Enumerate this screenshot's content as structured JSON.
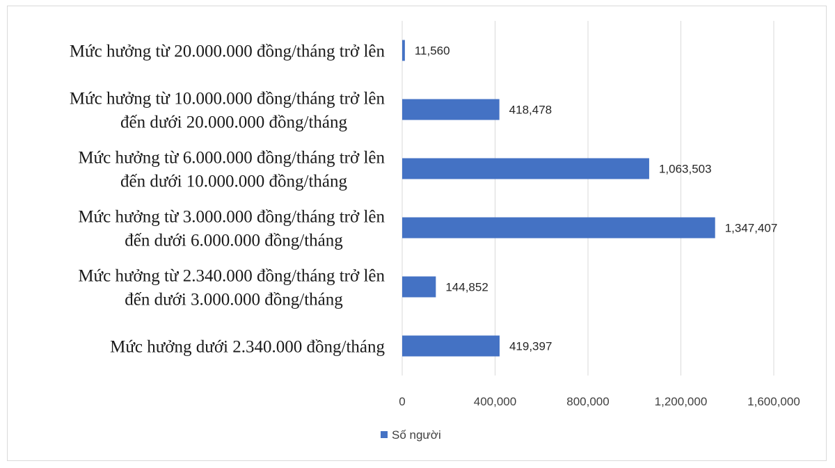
{
  "chart_data": {
    "type": "bar",
    "orientation": "horizontal",
    "title": "",
    "xlabel": "",
    "ylabel": "",
    "categories": [
      [
        "Mức hưởng từ 20.000.000 đồng/tháng trở lên"
      ],
      [
        "Mức hưởng từ 10.000.000 đồng/tháng trở lên",
        "đến dưới 20.000.000 đồng/tháng"
      ],
      [
        "Mức hưởng từ 6.000.000 đồng/tháng trở lên",
        "đến dưới 10.000.000 đồng/tháng"
      ],
      [
        "Mức hưởng từ 3.000.000 đồng/tháng trở lên",
        "đến dưới 6.000.000 đồng/tháng"
      ],
      [
        "Mức hưởng từ 2.340.000 đồng/tháng trở lên",
        "đến dưới 3.000.000 đồng/tháng"
      ],
      [
        "Mức hưởng dưới 2.340.000 đồng/tháng"
      ]
    ],
    "series": [
      {
        "name": "Số người",
        "color": "#4472c4",
        "values": [
          11560,
          418478,
          1063503,
          1347407,
          144852,
          419397
        ],
        "value_labels": [
          "11,560",
          "418,478",
          "1,063,503",
          "1,347,407",
          "144,852",
          "419,397"
        ]
      }
    ],
    "xlim": [
      0,
      1600000
    ],
    "x_ticks": [
      0,
      400000,
      800000,
      1200000,
      1600000
    ],
    "x_tick_labels": [
      "0",
      "400,000",
      "800,000",
      "1,200,000",
      "1,600,000"
    ],
    "grid": "vertical",
    "legend": "bottom"
  }
}
